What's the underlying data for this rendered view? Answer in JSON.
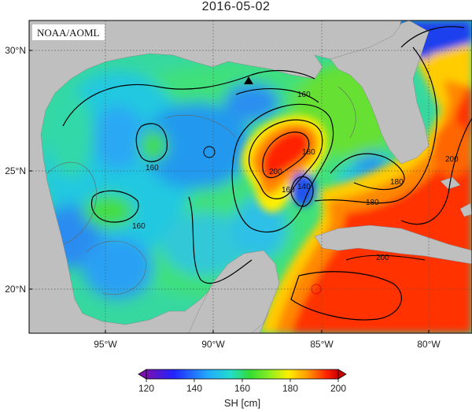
{
  "title": "2016-05-02",
  "watermark": "NOAA/AOML",
  "x_ticks": [
    "95°W",
    "90°W",
    "85°W",
    "80°W"
  ],
  "y_ticks": [
    "30°N",
    "25°N",
    "20°N"
  ],
  "contour_labels": {
    "c160_nw": "160",
    "c160_w": "160",
    "c160_ne": "160",
    "c180_loop": "180",
    "c200_loop": "200",
    "c140_eddy": "140",
    "c160_eddy": "160",
    "c180_fl": "180",
    "c180_straits": "180",
    "c200_carib": "200",
    "c200_atl": "200"
  },
  "colorbar": {
    "ticks": [
      "120",
      "140",
      "160",
      "180",
      "200"
    ],
    "label": "SH [cm]"
  },
  "colors": {
    "land": "#bfbfbf",
    "grid": "#555555"
  }
}
